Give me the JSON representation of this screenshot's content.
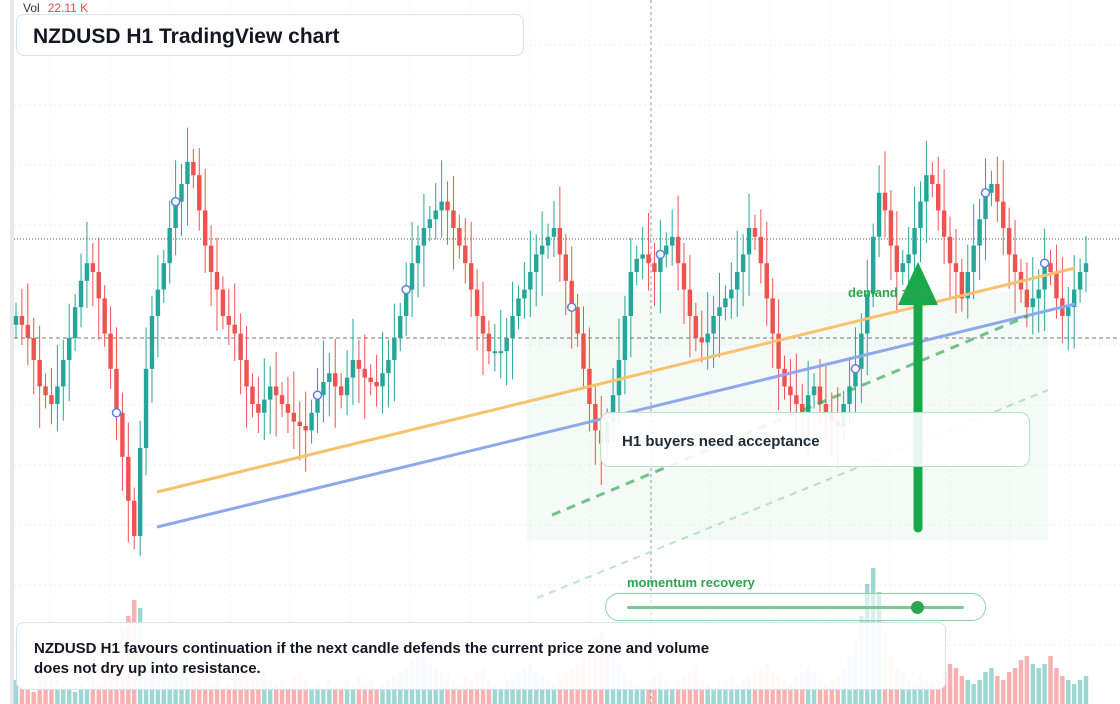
{
  "header": {
    "vol_label": "Vol",
    "vol_value": "22.11 K",
    "title": "NZDUSD H1 TradingView chart"
  },
  "annotations": {
    "note": "H1 buyers need acceptance",
    "zone_label": "demand zone",
    "momentum_label": "momentum recovery",
    "momentum_level": 0.86,
    "summary": "NZDUSD H1 favours continuation if the next candle defends the current price zone and volume does not dry up into resistance."
  },
  "colors": {
    "up": "#26a69a",
    "down": "#ef5350",
    "trend_orange": "#f6c26b",
    "trend_blue": "#8fa8ec",
    "accent_green": "#2ea44f"
  },
  "chart_data": {
    "type": "candlestick",
    "symbol": "NZDUSD",
    "timeframe": "H1",
    "grid": true,
    "ylim": [
      0,
      100
    ],
    "close": [
      60,
      58,
      55,
      50,
      44,
      42,
      40,
      44,
      50,
      55,
      62,
      68,
      72,
      70,
      64,
      56,
      48,
      38,
      28,
      18,
      10,
      30,
      48,
      60,
      66,
      72,
      80,
      86,
      90,
      95,
      92,
      84,
      76,
      70,
      66,
      60,
      58,
      56,
      50,
      44,
      40,
      38,
      41,
      44,
      42,
      40,
      38,
      36,
      35,
      34,
      38,
      42,
      45,
      47,
      44,
      42,
      46,
      50,
      48,
      46,
      45,
      44,
      47,
      50,
      55,
      60,
      66,
      72,
      76,
      80,
      82,
      84,
      86,
      84,
      80,
      76,
      72,
      66,
      60,
      56,
      52,
      52,
      52,
      55,
      60,
      64,
      66,
      70,
      74,
      76,
      78,
      80,
      74,
      68,
      62,
      56,
      48,
      40,
      34,
      31,
      36,
      42,
      50,
      60,
      70,
      73,
      74,
      72,
      70,
      74,
      76,
      78,
      72,
      66,
      60,
      55,
      54,
      56,
      60,
      62,
      64,
      66,
      70,
      74,
      80,
      78,
      72,
      64,
      56,
      48,
      44,
      42,
      40,
      38,
      42,
      44,
      40,
      38,
      36,
      35,
      40,
      44,
      48,
      56,
      65,
      78,
      88,
      84,
      76,
      70,
      72,
      74,
      80,
      86,
      92,
      90,
      84,
      78,
      72,
      70,
      64,
      70,
      76,
      82,
      88,
      90,
      86,
      80,
      74,
      70,
      66,
      62,
      64,
      66,
      72,
      70,
      64,
      60,
      62,
      66,
      70,
      72
    ],
    "volume": [
      6,
      5,
      4,
      3,
      8,
      7,
      9,
      6,
      5,
      4,
      3,
      5,
      4,
      6,
      5,
      7,
      9,
      12,
      19,
      22,
      26,
      24,
      14,
      8,
      6,
      7,
      9,
      11,
      16,
      13,
      9,
      8,
      7,
      5,
      6,
      4,
      5,
      6,
      8,
      9,
      8,
      7,
      8,
      6,
      5,
      6,
      5,
      7,
      8,
      6,
      4,
      5,
      4,
      6,
      5,
      4,
      6,
      5,
      7,
      5,
      6,
      4,
      5,
      6,
      7,
      8,
      9,
      11,
      13,
      12,
      10,
      9,
      8,
      7,
      6,
      5,
      7,
      6,
      8,
      9,
      6,
      5,
      4,
      6,
      7,
      8,
      9,
      10,
      8,
      7,
      6,
      5,
      7,
      8,
      9,
      10,
      12,
      14,
      17,
      18,
      15,
      12,
      10,
      8,
      6,
      5,
      4,
      5,
      7,
      8,
      6,
      5,
      6,
      7,
      8,
      9,
      6,
      5,
      4,
      5,
      6,
      7,
      5,
      6,
      7,
      8,
      9,
      10,
      8,
      7,
      6,
      5,
      7,
      8,
      9,
      8,
      6,
      5,
      6,
      7,
      9,
      12,
      16,
      22,
      30,
      34,
      28,
      18,
      12,
      9,
      8,
      6,
      5,
      7,
      6,
      5,
      6,
      8,
      10,
      9,
      7,
      6,
      5,
      6,
      8,
      9,
      7,
      6,
      8,
      9,
      11,
      12,
      10,
      9,
      10,
      12,
      9,
      7,
      6,
      5,
      6,
      7
    ]
  }
}
